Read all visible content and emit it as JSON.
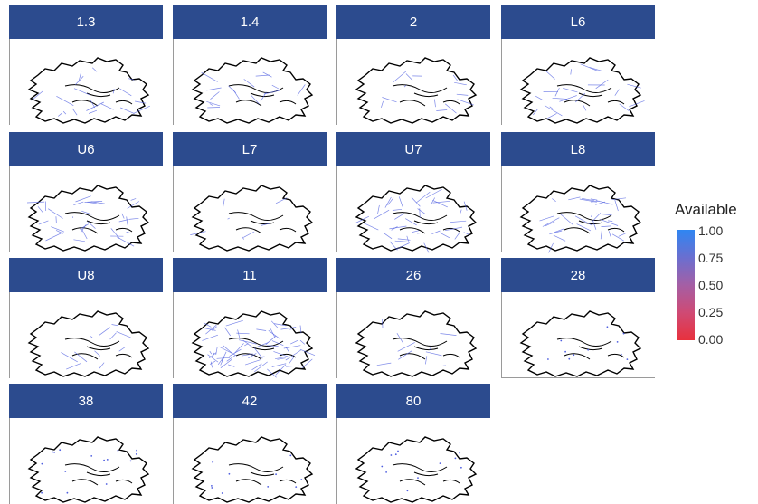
{
  "chart_data": {
    "type": "small-multiples-map",
    "panels": [
      {
        "label": "1.3"
      },
      {
        "label": "1.4"
      },
      {
        "label": "2"
      },
      {
        "label": "L6"
      },
      {
        "label": "U6"
      },
      {
        "label": "L7"
      },
      {
        "label": "U7"
      },
      {
        "label": "L8"
      },
      {
        "label": "U8"
      },
      {
        "label": "11"
      },
      {
        "label": "26"
      },
      {
        "label": "28"
      },
      {
        "label": "38"
      },
      {
        "label": "42"
      },
      {
        "label": "80"
      }
    ],
    "legend": {
      "title": "Available",
      "ticks": [
        "1.00",
        "0.75",
        "0.50",
        "0.25",
        "0.00"
      ],
      "scale": [
        {
          "value": 1.0,
          "color": "#2f86f2"
        },
        {
          "value": 0.5,
          "color": "#a45fa5"
        },
        {
          "value": 0.0,
          "color": "#e8313d"
        }
      ]
    },
    "colors": {
      "strip": "#2c4b8e",
      "outline": "#000000",
      "route": "#4f5fe0"
    }
  }
}
